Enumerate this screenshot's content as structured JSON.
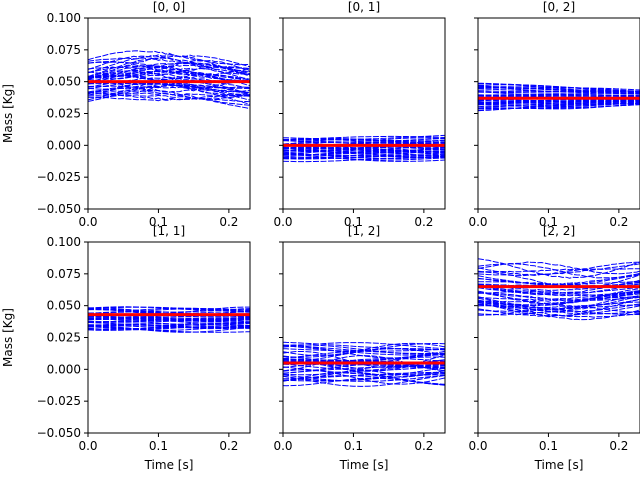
{
  "chart_data": {
    "type": "line",
    "figure": "3x2 grid of subplots: Monte Carlo blue sample trajectories with red true-value line",
    "shared": {
      "xlabel": "Time [s]",
      "ylabel": "Mass [Kg]",
      "xlim": [
        0.0,
        0.23
      ],
      "ylim": [
        -0.05,
        0.1
      ],
      "x_ticks": [
        "0.0",
        "0.1",
        "0.2"
      ],
      "x_tick_values": [
        0.0,
        0.1,
        0.2
      ],
      "y_ticks": [
        "−0.050",
        "−0.025",
        "0.000",
        "0.025",
        "0.050",
        "0.075",
        "0.100"
      ],
      "y_tick_values": [
        -0.05,
        -0.025,
        0.0,
        0.025,
        0.05,
        0.075,
        0.1
      ],
      "sample_color": "#0000ff",
      "reference_color": "#ff0000"
    },
    "panels": [
      {
        "title": "[0, 0]",
        "reference": 0.05,
        "band": [
          0.03,
          0.072
        ],
        "spread": 0.012,
        "trend": "mild bulge"
      },
      {
        "title": "[0, 1]",
        "reference": 0.0,
        "band": [
          -0.013,
          0.01
        ],
        "spread": 0.005,
        "trend": "flat"
      },
      {
        "title": "[0, 2]",
        "reference": 0.037,
        "band": [
          0.025,
          0.05
        ],
        "spread": 0.003,
        "trend": "narrowing"
      },
      {
        "title": "[1, 1]",
        "reference": 0.043,
        "band": [
          0.03,
          0.05
        ],
        "spread": 0.004,
        "trend": "flat"
      },
      {
        "title": "[1, 2]",
        "reference": 0.005,
        "band": [
          -0.013,
          0.022
        ],
        "spread": 0.009,
        "trend": "flat"
      },
      {
        "title": "[2, 2]",
        "reference": 0.065,
        "band": [
          0.043,
          0.085
        ],
        "spread": 0.009,
        "trend": "dip then rise"
      }
    ]
  }
}
